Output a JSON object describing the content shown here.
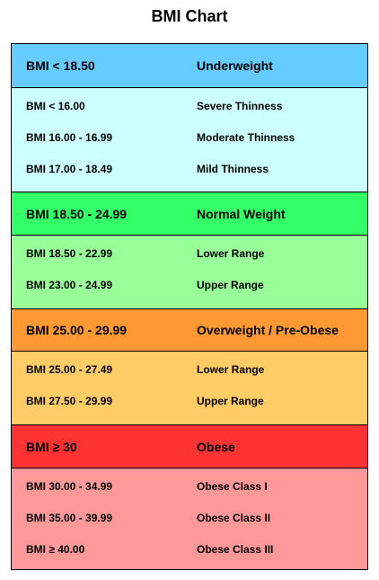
{
  "title": "BMI Chart",
  "colors": {
    "underweight_head": "#66ccff",
    "underweight_body": "#ccffff",
    "normal_head": "#33ff66",
    "normal_body": "#99ff99",
    "overweight_head": "#ff9933",
    "overweight_body": "#ffcc66",
    "obese_head": "#ff3333",
    "obese_body": "#ff9999"
  },
  "groups": [
    {
      "range": "BMI < 18.50",
      "category": "Underweight",
      "rows": [
        {
          "range": "BMI < 16.00",
          "category": "Severe Thinness"
        },
        {
          "range": "BMI 16.00 - 16.99",
          "category": "Moderate Thinness"
        },
        {
          "range": "BMI 17.00 - 18.49",
          "category": "Mild Thinness"
        }
      ]
    },
    {
      "range": "BMI 18.50 - 24.99",
      "category": "Normal Weight",
      "rows": [
        {
          "range": "BMI 18.50 - 22.99",
          "category": "Lower Range"
        },
        {
          "range": "BMI 23.00 - 24.99",
          "category": "Upper Range"
        }
      ]
    },
    {
      "range": "BMI 25.00 - 29.99",
      "category": "Overweight / Pre-Obese",
      "rows": [
        {
          "range": "BMI 25.00 - 27.49",
          "category": "Lower Range"
        },
        {
          "range": "BMI 27.50 - 29.99",
          "category": "Upper Range"
        }
      ]
    },
    {
      "range": "BMI ≥ 30",
      "category": "Obese",
      "rows": [
        {
          "range": "BMI 30.00 - 34.99",
          "category": "Obese Class I"
        },
        {
          "range": "BMI 35.00 - 39.99",
          "category": "Obese Class II"
        },
        {
          "range": "BMI ≥ 40.00",
          "category": "Obese Class III"
        }
      ]
    }
  ]
}
